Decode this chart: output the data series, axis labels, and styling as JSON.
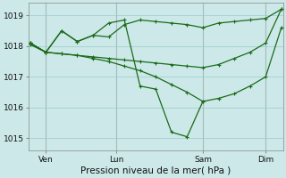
{
  "bg_color": "#cce8e8",
  "grid_color": "#99cccc",
  "line_color": "#1a6b1a",
  "title": "Pression niveau de la mer( hPa )",
  "ylim": [
    1014.6,
    1019.4
  ],
  "yticks": [
    1015,
    1016,
    1017,
    1018,
    1019
  ],
  "xlim": [
    -0.1,
    16.1
  ],
  "vline_positions": [
    1.0,
    5.5,
    11.0,
    15.0
  ],
  "vline_color": "#bb9999",
  "xtick_positions": [
    1.0,
    5.5,
    11.0,
    15.0
  ],
  "xtick_labels": [
    "Ven",
    "Lun",
    "Sam",
    "Dim"
  ],
  "series": [
    {
      "x": [
        0,
        1,
        2,
        3,
        4,
        5,
        6,
        7,
        8,
        9,
        10,
        11,
        12,
        13,
        14,
        15,
        16
      ],
      "y": [
        1018.05,
        1017.8,
        1017.75,
        1017.7,
        1017.65,
        1017.6,
        1017.55,
        1017.5,
        1017.45,
        1017.4,
        1017.35,
        1017.3,
        1017.4,
        1017.6,
        1017.8,
        1018.1,
        1019.2
      ]
    },
    {
      "x": [
        0,
        1,
        2,
        3,
        4,
        5,
        6,
        7,
        8,
        9,
        10,
        11,
        12,
        13,
        14,
        15,
        16
      ],
      "y": [
        1018.1,
        1017.8,
        1018.5,
        1018.15,
        1018.35,
        1018.3,
        1018.7,
        1018.85,
        1018.8,
        1018.75,
        1018.7,
        1018.6,
        1018.75,
        1018.8,
        1018.85,
        1018.9,
        1019.2
      ]
    },
    {
      "x": [
        0,
        1,
        2,
        3,
        4,
        5,
        6,
        7,
        8,
        9,
        10,
        11,
        12,
        13,
        14,
        15,
        16
      ],
      "y": [
        1018.1,
        1017.8,
        1017.75,
        1017.7,
        1017.6,
        1017.5,
        1017.35,
        1017.2,
        1017.0,
        1016.75,
        1016.5,
        1016.2,
        1016.3,
        1016.45,
        1016.7,
        1017.0,
        1018.6
      ]
    },
    {
      "x": [
        0,
        1,
        2,
        3,
        4,
        5,
        6,
        7,
        8,
        9,
        10,
        11
      ],
      "y": [
        1018.1,
        1017.8,
        1018.5,
        1018.15,
        1018.35,
        1018.75,
        1018.85,
        1016.7,
        1016.6,
        1015.2,
        1015.05,
        1016.2
      ]
    }
  ]
}
